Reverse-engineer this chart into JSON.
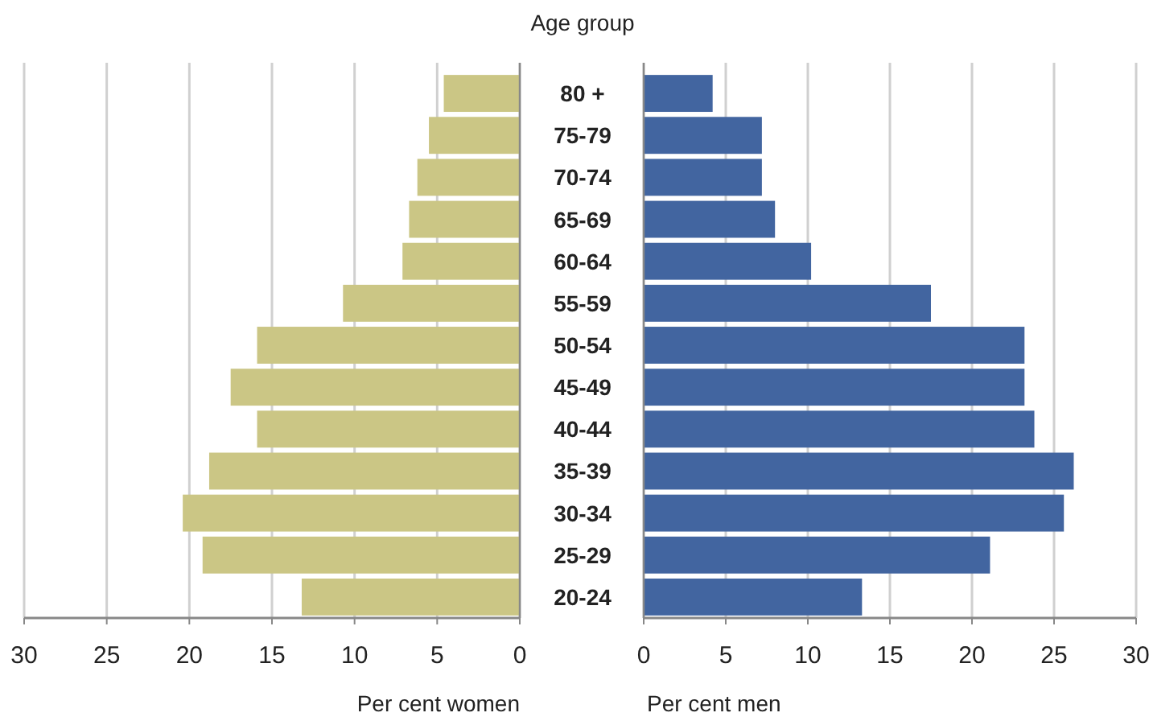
{
  "chart_data": [
    {
      "type": "bar",
      "orientation": "horizontal",
      "categories": [
        null,
        null,
        null,
        null,
        null,
        null,
        null,
        null,
        null,
        null,
        null,
        null,
        null
      ],
      "values": [
        4.6,
        5.5,
        6.2,
        6.7,
        7.1,
        10.7,
        15.9,
        17.5,
        15.9,
        18.8,
        20.4,
        19.2,
        13.2
      ],
      "color": "#cbc685",
      "xlim": [
        30,
        0
      ],
      "xticks": [
        30,
        25,
        20,
        15,
        10,
        5,
        0
      ],
      "xlabel": "Per cent women",
      "grid": "x"
    },
    {
      "type": "bar",
      "orientation": "horizontal",
      "categories": [
        "80 +",
        "75-79",
        "70-74",
        "65-69",
        "60-64",
        "55-59",
        "50-54",
        "45-49",
        "40-44",
        "35-39",
        "30-34",
        "25-29",
        "20-24"
      ],
      "values": [
        4.2,
        7.2,
        7.2,
        8.0,
        10.2,
        17.5,
        23.2,
        23.2,
        23.8,
        26.2,
        25.6,
        21.1,
        13.3
      ],
      "color": "#4265a0",
      "xlim": [
        0,
        30
      ],
      "xticks": [
        0,
        5,
        10,
        15,
        20,
        25,
        30
      ],
      "xlabel": "Per cent men",
      "ylabel": "Age group",
      "grid": "x"
    }
  ]
}
